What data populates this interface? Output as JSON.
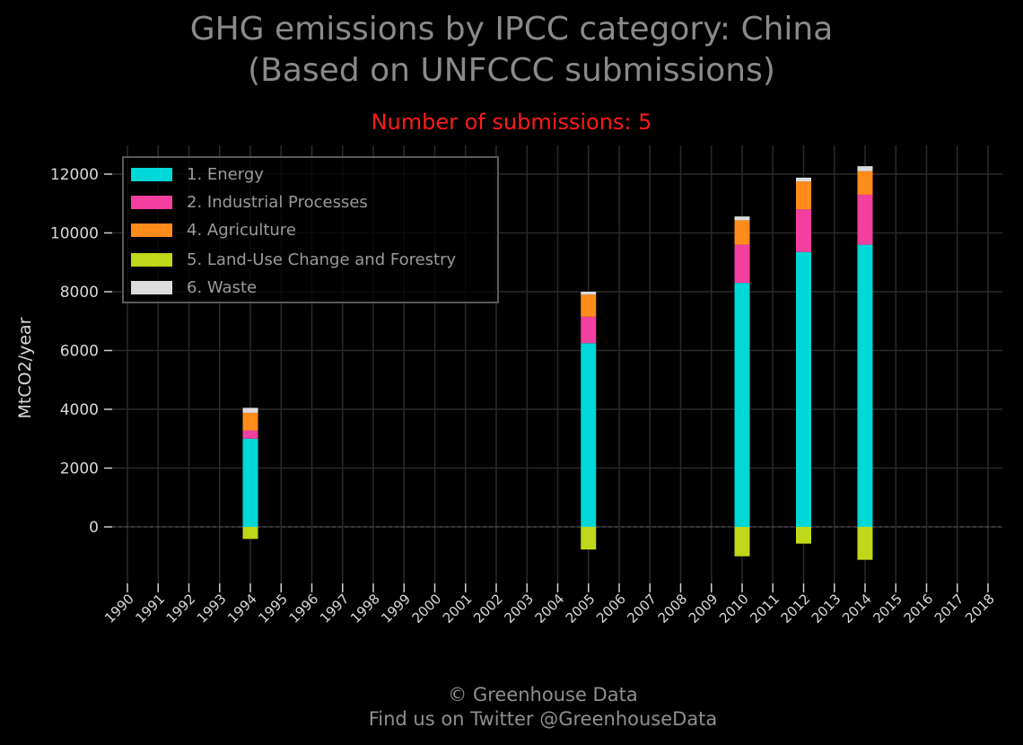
{
  "title_line1": "GHG emissions by IPCC category: China",
  "title_line2": "(Based on UNFCCC submissions)",
  "subtitle": "Number of submissions: 5",
  "footer_line1": "© Greenhouse Data",
  "footer_line2": "Find us on Twitter @GreenhouseData",
  "chart_data": {
    "type": "bar",
    "stacked": true,
    "ylabel": "MtCO2/year",
    "xlabel": "",
    "ylim": [
      -1900,
      12900
    ],
    "yticks": [
      0,
      2000,
      4000,
      6000,
      8000,
      10000,
      12000
    ],
    "grid": true,
    "legend_position": "top-left",
    "categories": [
      "1990",
      "1991",
      "1992",
      "1993",
      "1994",
      "1995",
      "1996",
      "1997",
      "1998",
      "1999",
      "2000",
      "2001",
      "2002",
      "2003",
      "2004",
      "2005",
      "2006",
      "2007",
      "2008",
      "2009",
      "2010",
      "2011",
      "2012",
      "2013",
      "2014",
      "2015",
      "2016",
      "2017",
      "2018"
    ],
    "series": [
      {
        "name": "1. Energy",
        "color": "#00d8d8",
        "values": [
          null,
          null,
          null,
          null,
          3000,
          null,
          null,
          null,
          null,
          null,
          null,
          null,
          null,
          null,
          null,
          6250,
          null,
          null,
          null,
          null,
          8300,
          null,
          9350,
          null,
          9600,
          null,
          null,
          null,
          null
        ]
      },
      {
        "name": "2. Industrial Processes",
        "color": "#f23fa0",
        "values": [
          null,
          null,
          null,
          null,
          280,
          null,
          null,
          null,
          null,
          null,
          null,
          null,
          null,
          null,
          null,
          900,
          null,
          null,
          null,
          null,
          1300,
          null,
          1450,
          null,
          1700,
          null,
          null,
          null,
          null
        ]
      },
      {
        "name": "4. Agriculture",
        "color": "#ff8c1a",
        "values": [
          null,
          null,
          null,
          null,
          600,
          null,
          null,
          null,
          null,
          null,
          null,
          null,
          null,
          null,
          null,
          750,
          null,
          null,
          null,
          null,
          830,
          null,
          950,
          null,
          800,
          null,
          null,
          null,
          null
        ]
      },
      {
        "name": "5. Land-Use Change and Forestry",
        "color": "#c0d81a",
        "values": [
          null,
          null,
          null,
          null,
          -410,
          null,
          null,
          null,
          null,
          null,
          null,
          null,
          null,
          null,
          null,
          -770,
          null,
          null,
          null,
          null,
          -1000,
          null,
          -570,
          null,
          -1120,
          null,
          null,
          null,
          null
        ]
      },
      {
        "name": "6. Waste",
        "color": "#dcdcdc",
        "values": [
          null,
          null,
          null,
          null,
          170,
          null,
          null,
          null,
          null,
          null,
          null,
          null,
          null,
          null,
          null,
          100,
          null,
          null,
          null,
          null,
          130,
          null,
          130,
          null,
          170,
          null,
          null,
          null,
          null
        ]
      }
    ]
  }
}
